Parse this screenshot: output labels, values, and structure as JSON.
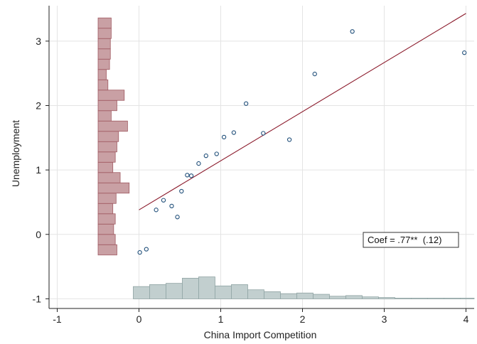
{
  "chart_data": {
    "type": "scatter",
    "title": "",
    "xlabel": "China Import Competition",
    "ylabel": "Unemployment",
    "xlim": [
      -1.1,
      4.1
    ],
    "ylim": [
      -1.15,
      3.55
    ],
    "xticks": [
      -1,
      0,
      1,
      2,
      3,
      4
    ],
    "yticks": [
      -1,
      0,
      1,
      2,
      3
    ],
    "grid": true,
    "annotation": "Coef = .77**  (.12)",
    "colors": {
      "points": "#1f4e79",
      "fit_line": "#8b1a2b",
      "y_hist_fill": "#c9a0a4",
      "y_hist_stroke": "#a05a62",
      "x_hist_fill": "#c2cfcf",
      "x_hist_stroke": "#8fa3a3",
      "grid": "#e4e4e4"
    },
    "points": [
      {
        "x": 0.01,
        "y": -0.28
      },
      {
        "x": 0.09,
        "y": -0.23
      },
      {
        "x": 0.21,
        "y": 0.38
      },
      {
        "x": 0.3,
        "y": 0.53
      },
      {
        "x": 0.4,
        "y": 0.44
      },
      {
        "x": 0.47,
        "y": 0.27
      },
      {
        "x": 0.52,
        "y": 0.67
      },
      {
        "x": 0.59,
        "y": 0.92
      },
      {
        "x": 0.64,
        "y": 0.91
      },
      {
        "x": 0.73,
        "y": 1.1
      },
      {
        "x": 0.82,
        "y": 1.22
      },
      {
        "x": 0.95,
        "y": 1.25
      },
      {
        "x": 1.04,
        "y": 1.51
      },
      {
        "x": 1.16,
        "y": 1.58
      },
      {
        "x": 1.31,
        "y": 2.03
      },
      {
        "x": 1.52,
        "y": 1.57
      },
      {
        "x": 1.84,
        "y": 1.47
      },
      {
        "x": 2.15,
        "y": 2.49
      },
      {
        "x": 2.61,
        "y": 3.15
      },
      {
        "x": 3.98,
        "y": 2.82
      }
    ],
    "fit_line": {
      "x0": 0.0,
      "y0": 0.38,
      "x1": 4.0,
      "y1": 3.43
    },
    "y_histogram": {
      "base_x": -0.5,
      "bins": [
        {
          "y0": -0.32,
          "y1": -0.16,
          "len": 0.23
        },
        {
          "y0": -0.16,
          "y1": 0.0,
          "len": 0.21
        },
        {
          "y0": 0.0,
          "y1": 0.16,
          "len": 0.19
        },
        {
          "y0": 0.16,
          "y1": 0.32,
          "len": 0.21
        },
        {
          "y0": 0.32,
          "y1": 0.48,
          "len": 0.18
        },
        {
          "y0": 0.48,
          "y1": 0.64,
          "len": 0.22
        },
        {
          "y0": 0.64,
          "y1": 0.8,
          "len": 0.38
        },
        {
          "y0": 0.8,
          "y1": 0.96,
          "len": 0.27
        },
        {
          "y0": 0.96,
          "y1": 1.12,
          "len": 0.18
        },
        {
          "y0": 1.12,
          "y1": 1.28,
          "len": 0.21
        },
        {
          "y0": 1.28,
          "y1": 1.44,
          "len": 0.23
        },
        {
          "y0": 1.44,
          "y1": 1.6,
          "len": 0.25
        },
        {
          "y0": 1.6,
          "y1": 1.76,
          "len": 0.36
        },
        {
          "y0": 1.76,
          "y1": 1.92,
          "len": 0.16
        },
        {
          "y0": 1.92,
          "y1": 2.08,
          "len": 0.23
        },
        {
          "y0": 2.08,
          "y1": 2.24,
          "len": 0.32
        },
        {
          "y0": 2.24,
          "y1": 2.4,
          "len": 0.12
        },
        {
          "y0": 2.4,
          "y1": 2.56,
          "len": 0.1
        },
        {
          "y0": 2.56,
          "y1": 2.72,
          "len": 0.14
        },
        {
          "y0": 2.72,
          "y1": 2.88,
          "len": 0.15
        },
        {
          "y0": 2.88,
          "y1": 3.04,
          "len": 0.15
        },
        {
          "y0": 3.04,
          "y1": 3.2,
          "len": 0.16
        },
        {
          "y0": 3.2,
          "y1": 3.36,
          "len": 0.16
        }
      ]
    },
    "x_histogram": {
      "base_y": -1.0,
      "bins": [
        {
          "x0": -0.07,
          "x1": 0.13,
          "len": 0.19
        },
        {
          "x0": 0.13,
          "x1": 0.33,
          "len": 0.22
        },
        {
          "x0": 0.33,
          "x1": 0.53,
          "len": 0.24
        },
        {
          "x0": 0.53,
          "x1": 0.73,
          "len": 0.32
        },
        {
          "x0": 0.73,
          "x1": 0.93,
          "len": 0.34
        },
        {
          "x0": 0.93,
          "x1": 1.13,
          "len": 0.2
        },
        {
          "x0": 1.13,
          "x1": 1.33,
          "len": 0.22
        },
        {
          "x0": 1.33,
          "x1": 1.53,
          "len": 0.14
        },
        {
          "x0": 1.53,
          "x1": 1.73,
          "len": 0.11
        },
        {
          "x0": 1.73,
          "x1": 1.93,
          "len": 0.08
        },
        {
          "x0": 1.93,
          "x1": 2.13,
          "len": 0.09
        },
        {
          "x0": 2.13,
          "x1": 2.33,
          "len": 0.07
        },
        {
          "x0": 2.33,
          "x1": 2.53,
          "len": 0.04
        },
        {
          "x0": 2.53,
          "x1": 2.73,
          "len": 0.05
        },
        {
          "x0": 2.73,
          "x1": 2.93,
          "len": 0.03
        },
        {
          "x0": 2.93,
          "x1": 3.13,
          "len": 0.02
        },
        {
          "x0": 3.13,
          "x1": 3.33,
          "len": 0.01
        },
        {
          "x0": 3.33,
          "x1": 3.53,
          "len": 0.01
        },
        {
          "x0": 3.53,
          "x1": 3.73,
          "len": 0.01
        },
        {
          "x0": 3.73,
          "x1": 3.93,
          "len": 0.01
        },
        {
          "x0": 3.93,
          "x1": 4.1,
          "len": 0.01
        }
      ]
    }
  }
}
